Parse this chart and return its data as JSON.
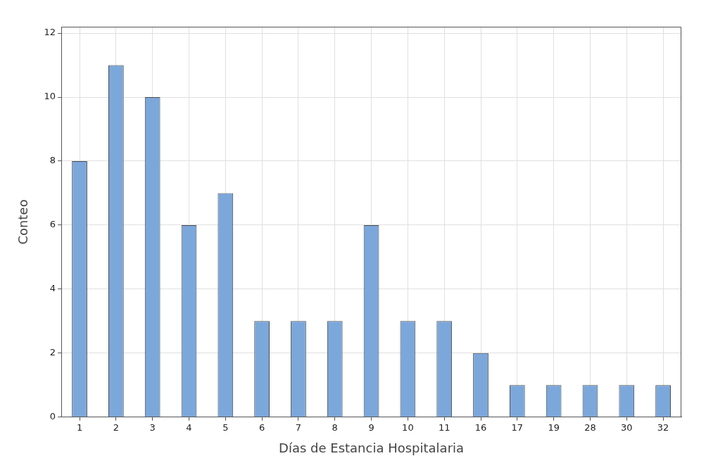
{
  "chart_data": {
    "type": "bar",
    "xlabel": "Días de Estancia Hospitalaria",
    "ylabel": "Conteo",
    "categories": [
      "1",
      "2",
      "3",
      "4",
      "5",
      "6",
      "7",
      "8",
      "9",
      "10",
      "11",
      "16",
      "17",
      "19",
      "28",
      "30",
      "32"
    ],
    "values": [
      8,
      11,
      10,
      6,
      7,
      3,
      3,
      3,
      6,
      3,
      3,
      2,
      1,
      1,
      1,
      1,
      1
    ],
    "color": "#7ba7db",
    "ylim": [
      0,
      12.2
    ],
    "yticks": [
      0,
      2,
      4,
      6,
      8,
      10,
      12
    ],
    "grid": true
  }
}
